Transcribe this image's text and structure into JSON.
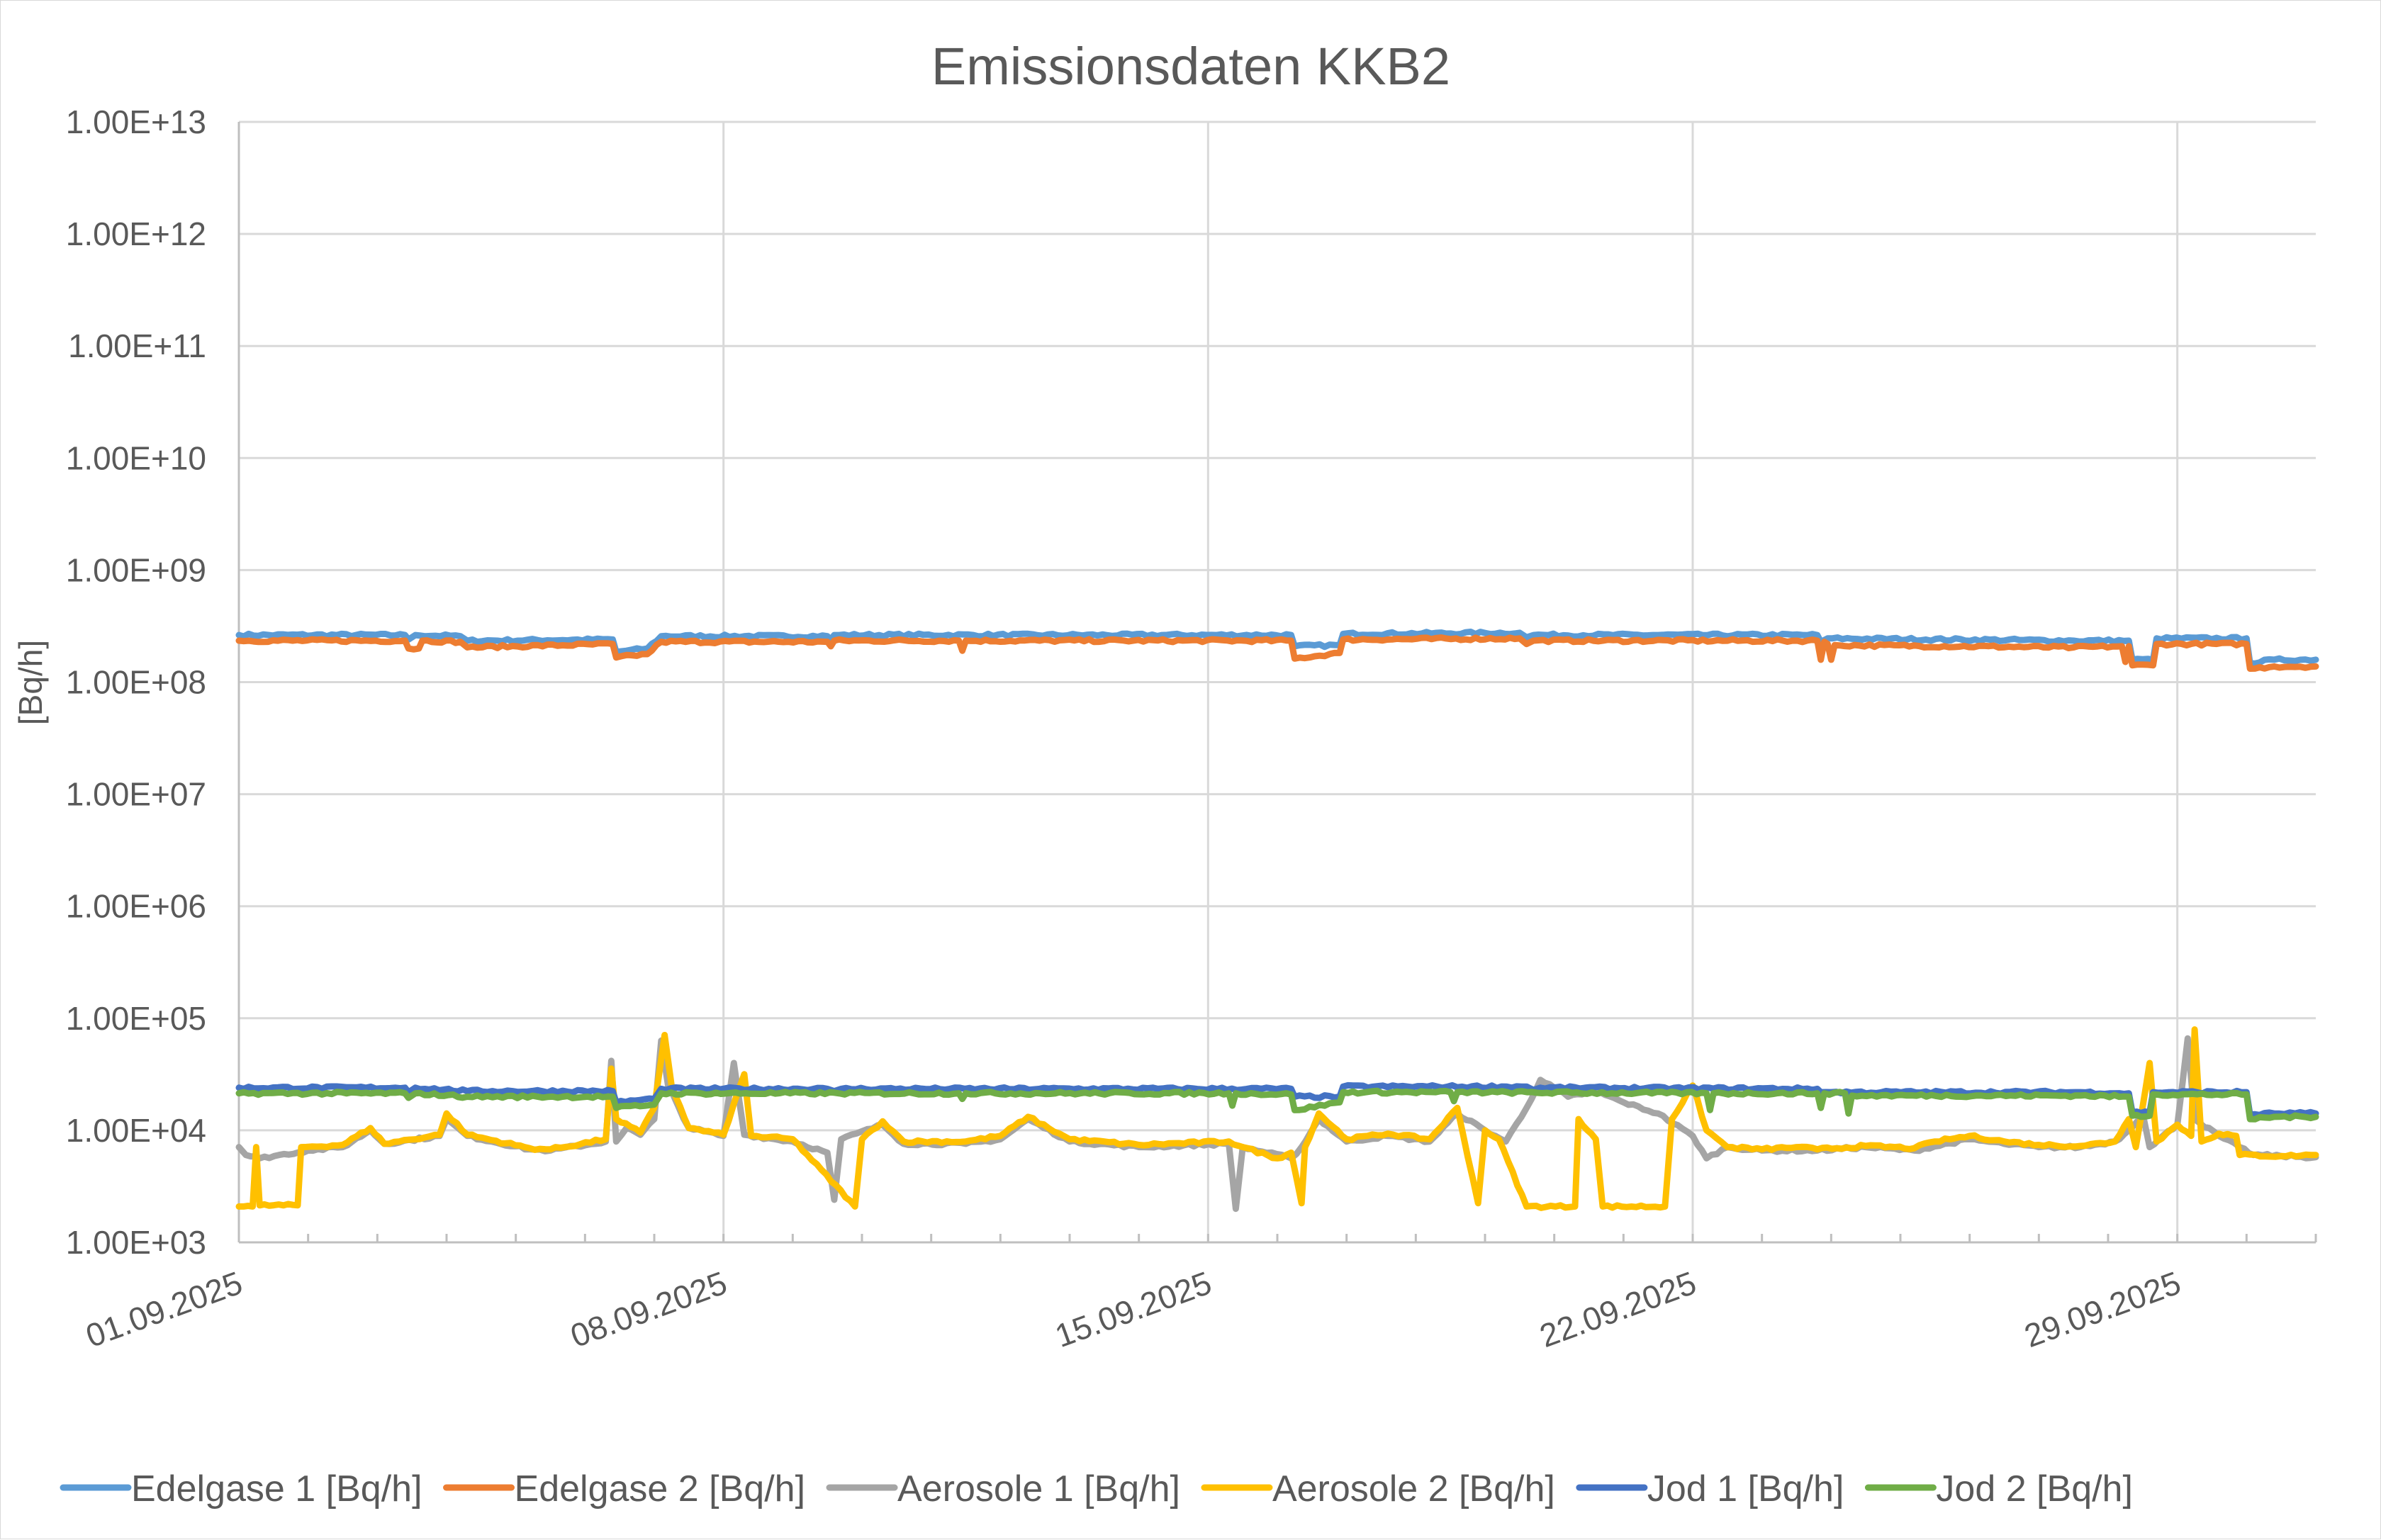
{
  "chart_data": {
    "type": "line",
    "title": "Emissionsdaten KKB2",
    "xlabel": "",
    "ylabel": "[Bq/h]",
    "yscale": "log",
    "ylim": [
      1000,
      10000000000000
    ],
    "y_ticks": [
      "1.00E+13",
      "1.00E+12",
      "1.00E+11",
      "1.00E+10",
      "1.00E+09",
      "1.00E+08",
      "1.00E+07",
      "1.00E+06",
      "1.00E+05",
      "1.00E+04",
      "1.00E+03"
    ],
    "x_range": [
      "01.09.2025",
      "01.10.2025"
    ],
    "x_tick_labels": [
      {
        "label": "01.09.2025",
        "day": 0
      },
      {
        "label": "08.09.2025",
        "day": 7
      },
      {
        "label": "15.09.2025",
        "day": 14
      },
      {
        "label": "22.09.2025",
        "day": 21
      },
      {
        "label": "29.09.2025",
        "day": 28
      }
    ],
    "minor_ticks_per_day": 1,
    "grid": true,
    "legend_position": "bottom",
    "series": [
      {
        "name": "Edelgase 1 [Bq/h]",
        "color": "#5B9BD5",
        "points_day_log10": [
          [
            0,
            8.42
          ],
          [
            2.4,
            8.42
          ],
          [
            2.45,
            8.38
          ],
          [
            2.55,
            8.42
          ],
          [
            3.2,
            8.41
          ],
          [
            3.3,
            8.37
          ],
          [
            5.4,
            8.38
          ],
          [
            5.45,
            8.27
          ],
          [
            5.9,
            8.3
          ],
          [
            6.1,
            8.41
          ],
          [
            8.5,
            8.41
          ],
          [
            8.55,
            8.38
          ],
          [
            8.6,
            8.42
          ],
          [
            15.2,
            8.42
          ],
          [
            15.25,
            8.32
          ],
          [
            15.9,
            8.33
          ],
          [
            15.95,
            8.43
          ],
          [
            18.5,
            8.44
          ],
          [
            18.6,
            8.4
          ],
          [
            18.7,
            8.42
          ],
          [
            22.8,
            8.42
          ],
          [
            22.85,
            8.36
          ],
          [
            22.95,
            8.39
          ],
          [
            26.5,
            8.37
          ],
          [
            27.3,
            8.37
          ],
          [
            27.35,
            8.2
          ],
          [
            27.65,
            8.2
          ],
          [
            27.7,
            8.39
          ],
          [
            29.0,
            8.39
          ],
          [
            29.05,
            8.17
          ],
          [
            29.4,
            8.2
          ],
          [
            30,
            8.2
          ]
        ]
      },
      {
        "name": "Edelgase 2 [Bq/h]",
        "color": "#ED7D31",
        "points_day_log10": [
          [
            0,
            8.37
          ],
          [
            2.4,
            8.37
          ],
          [
            2.45,
            8.3
          ],
          [
            2.6,
            8.3
          ],
          [
            2.65,
            8.37
          ],
          [
            3.2,
            8.36
          ],
          [
            3.3,
            8.31
          ],
          [
            5.4,
            8.34
          ],
          [
            5.45,
            8.22
          ],
          [
            5.9,
            8.25
          ],
          [
            6.1,
            8.36
          ],
          [
            8.5,
            8.36
          ],
          [
            8.55,
            8.32
          ],
          [
            8.6,
            8.37
          ],
          [
            10.4,
            8.37
          ],
          [
            10.45,
            8.28
          ],
          [
            10.5,
            8.37
          ],
          [
            15.2,
            8.37
          ],
          [
            15.25,
            8.21
          ],
          [
            15.9,
            8.26
          ],
          [
            15.95,
            8.38
          ],
          [
            18.5,
            8.39
          ],
          [
            18.6,
            8.34
          ],
          [
            18.7,
            8.37
          ],
          [
            22.8,
            8.37
          ],
          [
            22.85,
            8.2
          ],
          [
            22.9,
            8.36
          ],
          [
            22.95,
            8.34
          ],
          [
            23.0,
            8.2
          ],
          [
            23.05,
            8.33
          ],
          [
            26.5,
            8.31
          ],
          [
            27.2,
            8.32
          ],
          [
            27.25,
            8.18
          ],
          [
            27.3,
            8.32
          ],
          [
            27.35,
            8.15
          ],
          [
            27.65,
            8.15
          ],
          [
            27.7,
            8.34
          ],
          [
            29.0,
            8.34
          ],
          [
            29.05,
            8.12
          ],
          [
            29.4,
            8.14
          ],
          [
            30,
            8.14
          ]
        ]
      },
      {
        "name": "Aerosole 1 [Bq/h]",
        "color": "#A5A5A5",
        "points_day_log10": [
          [
            0,
            3.85
          ],
          [
            0.1,
            3.78
          ],
          [
            0.3,
            3.75
          ],
          [
            1.0,
            3.82
          ],
          [
            1.5,
            3.85
          ],
          [
            1.9,
            4.0
          ],
          [
            2.1,
            3.88
          ],
          [
            2.9,
            3.95
          ],
          [
            3.0,
            4.1
          ],
          [
            3.3,
            3.95
          ],
          [
            4.2,
            3.83
          ],
          [
            4.5,
            3.82
          ],
          [
            5.3,
            3.9
          ],
          [
            5.38,
            4.62
          ],
          [
            5.45,
            3.9
          ],
          [
            5.6,
            4.02
          ],
          [
            5.8,
            3.96
          ],
          [
            6.0,
            4.1
          ],
          [
            6.1,
            4.8
          ],
          [
            6.2,
            4.4
          ],
          [
            6.5,
            4.02
          ],
          [
            7.0,
            3.95
          ],
          [
            7.15,
            4.6
          ],
          [
            7.3,
            3.96
          ],
          [
            8.0,
            3.9
          ],
          [
            8.5,
            3.8
          ],
          [
            8.6,
            3.38
          ],
          [
            8.7,
            3.92
          ],
          [
            9.3,
            4.05
          ],
          [
            9.6,
            3.88
          ],
          [
            10.5,
            3.88
          ],
          [
            11.0,
            3.92
          ],
          [
            11.4,
            4.1
          ],
          [
            12.0,
            3.9
          ],
          [
            13.0,
            3.85
          ],
          [
            14.3,
            3.88
          ],
          [
            14.4,
            3.3
          ],
          [
            14.5,
            3.85
          ],
          [
            15.2,
            3.75
          ],
          [
            15.35,
            3.85
          ],
          [
            15.6,
            4.1
          ],
          [
            16.0,
            3.9
          ],
          [
            16.6,
            3.95
          ],
          [
            17.2,
            3.9
          ],
          [
            17.6,
            4.15
          ],
          [
            18.0,
            4.0
          ],
          [
            18.3,
            3.9
          ],
          [
            18.6,
            4.2
          ],
          [
            18.8,
            4.45
          ],
          [
            19.2,
            4.3
          ],
          [
            19.6,
            4.35
          ],
          [
            20.0,
            4.25
          ],
          [
            20.5,
            4.15
          ],
          [
            21.0,
            3.95
          ],
          [
            21.2,
            3.75
          ],
          [
            21.5,
            3.85
          ],
          [
            22.0,
            3.82
          ],
          [
            22.8,
            3.82
          ],
          [
            23.5,
            3.85
          ],
          [
            24.2,
            3.82
          ],
          [
            25.0,
            3.92
          ],
          [
            25.5,
            3.88
          ],
          [
            26.0,
            3.85
          ],
          [
            26.6,
            3.85
          ],
          [
            27.1,
            3.9
          ],
          [
            27.3,
            4.0
          ],
          [
            27.5,
            4.15
          ],
          [
            27.6,
            3.85
          ],
          [
            28.0,
            4.05
          ],
          [
            28.15,
            4.82
          ],
          [
            28.25,
            4.1
          ],
          [
            28.6,
            3.95
          ],
          [
            28.9,
            3.85
          ],
          [
            29.1,
            3.78
          ],
          [
            29.5,
            3.77
          ],
          [
            30,
            3.76
          ]
        ]
      },
      {
        "name": "Aerosole 2 [Bq/h]",
        "color": "#FFC000",
        "points_day_log10": [
          [
            0,
            3.32
          ],
          [
            0.2,
            3.32
          ],
          [
            0.25,
            3.85
          ],
          [
            0.3,
            3.33
          ],
          [
            0.85,
            3.33
          ],
          [
            0.9,
            3.85
          ],
          [
            1.5,
            3.87
          ],
          [
            1.9,
            4.02
          ],
          [
            2.1,
            3.88
          ],
          [
            2.9,
            3.96
          ],
          [
            3.0,
            4.15
          ],
          [
            3.3,
            3.96
          ],
          [
            4.2,
            3.84
          ],
          [
            4.5,
            3.83
          ],
          [
            5.3,
            3.92
          ],
          [
            5.38,
            4.55
          ],
          [
            5.45,
            4.1
          ],
          [
            5.8,
            3.98
          ],
          [
            6.0,
            4.2
          ],
          [
            6.15,
            4.85
          ],
          [
            6.25,
            4.4
          ],
          [
            6.5,
            4.02
          ],
          [
            7.0,
            3.96
          ],
          [
            7.3,
            4.5
          ],
          [
            7.4,
            3.95
          ],
          [
            8.0,
            3.92
          ],
          [
            8.9,
            3.32
          ],
          [
            9.0,
            3.92
          ],
          [
            9.3,
            4.08
          ],
          [
            9.6,
            3.9
          ],
          [
            10.5,
            3.9
          ],
          [
            11.0,
            3.95
          ],
          [
            11.4,
            4.12
          ],
          [
            12.0,
            3.92
          ],
          [
            13.0,
            3.87
          ],
          [
            14.3,
            3.9
          ],
          [
            14.5,
            3.85
          ],
          [
            15.0,
            3.75
          ],
          [
            15.2,
            3.8
          ],
          [
            15.35,
            3.35
          ],
          [
            15.4,
            3.85
          ],
          [
            15.6,
            4.15
          ],
          [
            16.0,
            3.92
          ],
          [
            16.6,
            3.97
          ],
          [
            17.2,
            3.92
          ],
          [
            17.6,
            4.2
          ],
          [
            17.9,
            3.35
          ],
          [
            18.0,
            4.0
          ],
          [
            18.2,
            3.92
          ],
          [
            18.6,
            3.32
          ],
          [
            19.3,
            3.32
          ],
          [
            19.35,
            4.1
          ],
          [
            19.6,
            3.92
          ],
          [
            19.7,
            3.32
          ],
          [
            20.6,
            3.32
          ],
          [
            20.7,
            4.1
          ],
          [
            21.0,
            4.4
          ],
          [
            21.2,
            4.0
          ],
          [
            21.5,
            3.85
          ],
          [
            22.0,
            3.83
          ],
          [
            22.5,
            3.85
          ],
          [
            22.8,
            3.83
          ],
          [
            23.5,
            3.86
          ],
          [
            24.2,
            3.84
          ],
          [
            24.5,
            3.9
          ],
          [
            25.0,
            3.95
          ],
          [
            25.5,
            3.9
          ],
          [
            26.0,
            3.87
          ],
          [
            26.6,
            3.86
          ],
          [
            27.1,
            3.9
          ],
          [
            27.3,
            4.1
          ],
          [
            27.4,
            3.85
          ],
          [
            27.6,
            4.6
          ],
          [
            27.7,
            3.9
          ],
          [
            28.0,
            4.05
          ],
          [
            28.2,
            3.95
          ],
          [
            28.25,
            4.9
          ],
          [
            28.35,
            3.9
          ],
          [
            28.6,
            3.97
          ],
          [
            28.85,
            3.95
          ],
          [
            28.9,
            3.78
          ],
          [
            29.5,
            3.77
          ],
          [
            30,
            3.78
          ]
        ]
      },
      {
        "name": "Jod 1 [Bq/h]",
        "color": "#4472C4",
        "points_day_log10": [
          [
            0,
            4.38
          ],
          [
            2.4,
            4.38
          ],
          [
            2.45,
            4.34
          ],
          [
            2.55,
            4.38
          ],
          [
            3.3,
            4.35
          ],
          [
            5.4,
            4.35
          ],
          [
            5.45,
            4.25
          ],
          [
            6.0,
            4.28
          ],
          [
            6.1,
            4.37
          ],
          [
            8.5,
            4.37
          ],
          [
            8.6,
            4.35
          ],
          [
            8.7,
            4.37
          ],
          [
            15.2,
            4.37
          ],
          [
            15.25,
            4.3
          ],
          [
            15.9,
            4.3
          ],
          [
            15.95,
            4.39
          ],
          [
            18.6,
            4.39
          ],
          [
            18.7,
            4.36
          ],
          [
            18.8,
            4.38
          ],
          [
            22.8,
            4.37
          ],
          [
            22.85,
            4.34
          ],
          [
            23.0,
            4.34
          ],
          [
            26.6,
            4.34
          ],
          [
            27.3,
            4.33
          ],
          [
            27.35,
            4.16
          ],
          [
            27.6,
            4.16
          ],
          [
            27.65,
            4.34
          ],
          [
            29.0,
            4.34
          ],
          [
            29.05,
            4.14
          ],
          [
            29.4,
            4.15
          ],
          [
            30,
            4.15
          ]
        ]
      },
      {
        "name": "Jod 2 [Bq/h]",
        "color": "#70AD47",
        "points_day_log10": [
          [
            0,
            4.33
          ],
          [
            2.4,
            4.33
          ],
          [
            2.45,
            4.29
          ],
          [
            2.55,
            4.33
          ],
          [
            3.3,
            4.3
          ],
          [
            5.4,
            4.3
          ],
          [
            5.45,
            4.2
          ],
          [
            6.0,
            4.23
          ],
          [
            6.1,
            4.33
          ],
          [
            10.4,
            4.33
          ],
          [
            10.45,
            4.28
          ],
          [
            10.5,
            4.33
          ],
          [
            14.3,
            4.33
          ],
          [
            14.35,
            4.22
          ],
          [
            14.4,
            4.33
          ],
          [
            15.2,
            4.32
          ],
          [
            15.25,
            4.18
          ],
          [
            15.9,
            4.25
          ],
          [
            15.95,
            4.34
          ],
          [
            17.5,
            4.34
          ],
          [
            17.55,
            4.26
          ],
          [
            17.6,
            4.34
          ],
          [
            21.2,
            4.33
          ],
          [
            21.25,
            4.18
          ],
          [
            21.3,
            4.33
          ],
          [
            22.8,
            4.33
          ],
          [
            22.85,
            4.2
          ],
          [
            22.9,
            4.33
          ],
          [
            23.2,
            4.33
          ],
          [
            23.25,
            4.15
          ],
          [
            23.3,
            4.31
          ],
          [
            26.6,
            4.31
          ],
          [
            27.3,
            4.3
          ],
          [
            27.35,
            4.13
          ],
          [
            27.6,
            4.13
          ],
          [
            27.65,
            4.32
          ],
          [
            29.0,
            4.32
          ],
          [
            29.05,
            4.1
          ],
          [
            29.4,
            4.12
          ],
          [
            30,
            4.12
          ]
        ]
      }
    ]
  }
}
